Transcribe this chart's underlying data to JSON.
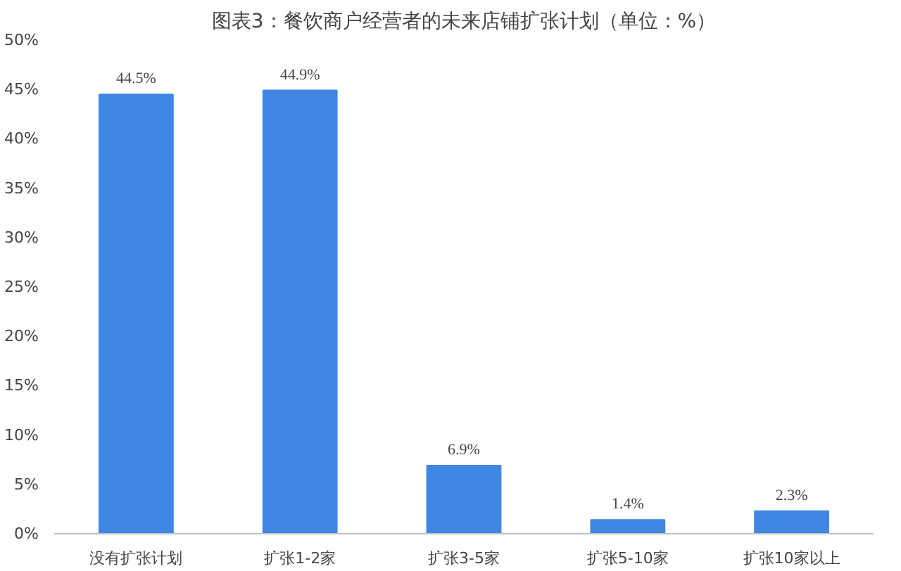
{
  "chart_data": {
    "type": "bar",
    "title": "图表3：餐饮商户经营者的未来店铺扩张计划（单位：%）",
    "categories": [
      "没有扩张计划",
      "扩张1-2家",
      "扩张3-5家",
      "扩张5-10家",
      "扩张10家以上"
    ],
    "values": [
      44.5,
      44.9,
      6.9,
      1.4,
      2.3
    ],
    "value_labels": [
      "44.5%",
      "44.9%",
      "6.9%",
      "1.4%",
      "2.3%"
    ],
    "color": "#3f87e3",
    "ylim": [
      0,
      50
    ],
    "yticks": [
      {
        "value": 0,
        "label": "0%"
      },
      {
        "value": 5,
        "label": "5%"
      },
      {
        "value": 10,
        "label": "10%"
      },
      {
        "value": 15,
        "label": "15%"
      },
      {
        "value": 20,
        "label": "20%"
      },
      {
        "value": 25,
        "label": "25%"
      },
      {
        "value": 30,
        "label": "30%"
      },
      {
        "value": 35,
        "label": "35%"
      },
      {
        "value": 40,
        "label": "40%"
      },
      {
        "value": 45,
        "label": "45%"
      },
      {
        "value": 50,
        "label": "50%"
      }
    ],
    "grid": false
  }
}
